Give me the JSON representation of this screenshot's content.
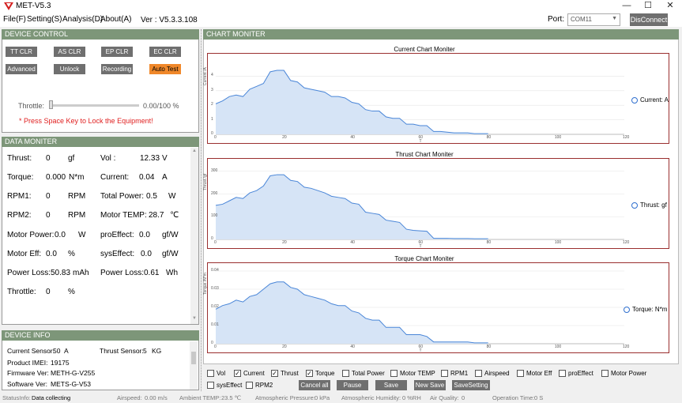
{
  "app": {
    "title": "MET-V5.3",
    "version": "Ver : V5.3.3.108"
  },
  "menu": [
    "File(F)",
    "Setting(S)",
    "Analysis(D)",
    "About(A)"
  ],
  "port": {
    "label": "Port:",
    "value": "COM11",
    "button": "DisConnect"
  },
  "device_control": {
    "header": "DEVICE CONTROL",
    "row1": [
      "TT CLR",
      "AS CLR",
      "EP CLR",
      "EC CLR"
    ],
    "row2": [
      "Advanced",
      "Unlock",
      "Recording",
      "Auto Test"
    ],
    "throttle_label": "Throttle:",
    "throttle_value": "0.00/100 %",
    "throttle_level": 0,
    "warning": "* Press Space Key to Lock the Equipment!"
  },
  "data_moniter": {
    "header": "DATA MONITER",
    "left": [
      {
        "label": "Thrust:",
        "value": "0",
        "unit": "gf"
      },
      {
        "label": "Torque:",
        "value": "0.000",
        "unit": "N*m"
      },
      {
        "label": "RPM1:",
        "value": "0",
        "unit": "RPM"
      },
      {
        "label": "RPM2:",
        "value": "0",
        "unit": "RPM"
      },
      {
        "label": "Motor Power:",
        "value": "0.0",
        "unit": "W"
      },
      {
        "label": "Motor Eff:",
        "value": "0.0",
        "unit": "%"
      },
      {
        "label": "Power Loss:",
        "value": "50.83",
        "unit": "mAh"
      },
      {
        "label": "Throttle:",
        "value": "0",
        "unit": "%"
      }
    ],
    "right": [
      {
        "label": "Vol :",
        "value": "12.33",
        "unit": "V"
      },
      {
        "label": "Current:",
        "value": "0.04",
        "unit": "A"
      },
      {
        "label": "Total Power:",
        "value": "0.5",
        "unit": "W"
      },
      {
        "label": "Motor TEMP:",
        "value": "28.7",
        "unit": "℃"
      },
      {
        "label": "proEffect:",
        "value": "0.0",
        "unit": "gf/W"
      },
      {
        "label": "sysEffect:",
        "value": "0.0",
        "unit": "gf/W"
      },
      {
        "label": "Power Loss:",
        "value": "0.61",
        "unit": "Wh"
      }
    ]
  },
  "device_info": {
    "header": "DEVICE INFO",
    "current_sensor_label": "Current Sensor:",
    "current_sensor_value": "50",
    "current_sensor_unit": "A",
    "thrust_sensor_label": "Thrust Sensor:",
    "thrust_sensor_value": "5",
    "thrust_sensor_unit": "KG",
    "imei_label": "Product IMEI:",
    "imei_value": "19175",
    "firmware_label": "Firmware Ver:",
    "firmware_value": "METH-G-V255",
    "software_label": "Software Ver:",
    "software_value": "METS-G-V53"
  },
  "chart_moniter_header": "CHART MONITER",
  "chart_data": [
    {
      "type": "area",
      "title": "Current Chart Moniter",
      "xlabel": "T",
      "ylabel": "Current /A",
      "xlim": [
        0,
        120
      ],
      "ylim": [
        0,
        5
      ],
      "xticks": [
        "0",
        "20",
        "40",
        "60",
        "80",
        "100",
        "120"
      ],
      "yticks": [
        "0",
        "1",
        "2",
        "3",
        "4"
      ],
      "series": [
        {
          "name": "Current: A",
          "color": "#4a86d8",
          "x": [
            0,
            2,
            4,
            6,
            8,
            10,
            12,
            14,
            16,
            18,
            20,
            22,
            24,
            26,
            28,
            30,
            32,
            34,
            36,
            38,
            40,
            42,
            44,
            46,
            48,
            50,
            52,
            54,
            56,
            58,
            60,
            62,
            64,
            66,
            68,
            70,
            72,
            74,
            76,
            78,
            80
          ],
          "y": [
            2.1,
            2.3,
            2.6,
            2.7,
            2.6,
            3.1,
            3.3,
            3.5,
            4.3,
            4.4,
            4.4,
            3.7,
            3.6,
            3.2,
            3.1,
            3.0,
            2.9,
            2.6,
            2.6,
            2.5,
            2.2,
            2.1,
            1.7,
            1.6,
            1.6,
            1.2,
            1.1,
            1.1,
            0.7,
            0.7,
            0.6,
            0.6,
            0.2,
            0.2,
            0.15,
            0.1,
            0.1,
            0.1,
            0.05,
            0.05,
            0.05
          ]
        }
      ]
    },
    {
      "type": "area",
      "title": "Thrust Chart Moniter",
      "xlabel": "T",
      "ylabel": "Thrust /gf",
      "xlim": [
        0,
        120
      ],
      "ylim": [
        0,
        320
      ],
      "xticks": [
        "0",
        "20",
        "40",
        "60",
        "80",
        "100",
        "120"
      ],
      "yticks": [
        "0",
        "100",
        "200",
        "300"
      ],
      "series": [
        {
          "name": "Thrust: gf",
          "color": "#4a86d8",
          "x": [
            0,
            2,
            4,
            6,
            8,
            10,
            12,
            14,
            16,
            18,
            20,
            22,
            24,
            26,
            28,
            30,
            32,
            34,
            36,
            38,
            40,
            42,
            44,
            46,
            48,
            50,
            52,
            54,
            56,
            58,
            60,
            62,
            64,
            66,
            68,
            70,
            72,
            74,
            76,
            78,
            80
          ],
          "y": [
            150,
            155,
            170,
            185,
            180,
            205,
            215,
            235,
            280,
            285,
            285,
            260,
            255,
            230,
            225,
            215,
            205,
            190,
            185,
            180,
            160,
            155,
            120,
            115,
            110,
            85,
            80,
            75,
            45,
            40,
            38,
            36,
            5,
            5,
            5,
            4,
            4,
            4,
            3,
            3,
            3
          ]
        }
      ]
    },
    {
      "type": "area",
      "title": "Torque Chart Moniter",
      "xlabel": "T",
      "ylabel": "Torque /N*m",
      "xlim": [
        0,
        120
      ],
      "ylim": [
        0,
        0.04
      ],
      "xticks": [
        "0",
        "20",
        "40",
        "60",
        "80",
        "100",
        "120"
      ],
      "yticks": [
        "0",
        "0.01",
        "0.02",
        "0.03",
        "0.04"
      ],
      "series": [
        {
          "name": "Torque: N*m",
          "color": "#4a86d8",
          "x": [
            0,
            2,
            4,
            6,
            8,
            10,
            12,
            14,
            16,
            18,
            20,
            22,
            24,
            26,
            28,
            30,
            32,
            34,
            36,
            38,
            40,
            42,
            44,
            46,
            48,
            50,
            52,
            54,
            56,
            58,
            60,
            62,
            64,
            66,
            68,
            70,
            72,
            74,
            76,
            78,
            80
          ],
          "y": [
            0.019,
            0.021,
            0.022,
            0.024,
            0.023,
            0.026,
            0.027,
            0.03,
            0.033,
            0.034,
            0.034,
            0.031,
            0.03,
            0.027,
            0.026,
            0.025,
            0.024,
            0.022,
            0.021,
            0.021,
            0.018,
            0.017,
            0.014,
            0.013,
            0.013,
            0.009,
            0.009,
            0.009,
            0.005,
            0.005,
            0.005,
            0.004,
            0.001,
            0.001,
            0.001,
            0.001,
            0.001,
            0.001,
            0.0005,
            0.0005,
            0.0005
          ]
        }
      ]
    }
  ],
  "checkboxes_row1": [
    {
      "label": "Vol",
      "checked": false
    },
    {
      "label": "Current",
      "checked": true
    },
    {
      "label": "Thrust",
      "checked": true
    },
    {
      "label": "Torque",
      "checked": true
    },
    {
      "label": "Total Power",
      "checked": false
    },
    {
      "label": "Motor TEMP",
      "checked": false
    },
    {
      "label": "RPM1",
      "checked": false
    },
    {
      "label": "Airspeed",
      "checked": false
    },
    {
      "label": "Motor Eff",
      "checked": false
    },
    {
      "label": "proEffect",
      "checked": false
    },
    {
      "label": "Motor Power",
      "checked": false
    }
  ],
  "checkboxes_row2": [
    {
      "label": "sysEffect",
      "checked": false
    },
    {
      "label": "RPM2",
      "checked": false
    }
  ],
  "bottom_buttons": [
    "Cancel all",
    "Pause",
    "Save",
    "New Save",
    "SaveSetting"
  ],
  "status": {
    "status_label": "StatusInfo:",
    "status_value": "Data collecting",
    "airspeed_label": "Airspeed:",
    "airspeed_value": "0.00 m/s",
    "ambient_label": "Ambient TEMP:",
    "ambient_value": "23.5 ℃",
    "pressure_label": "Atmospheric Pressure:",
    "pressure_value": "0 kPa",
    "humidity_label": "Atmospheric Humidity:",
    "humidity_value": "0 %RH",
    "air_label": "Air Quality:",
    "air_value": "0",
    "optime_label": "Operation Time:",
    "optime_value": "0 S"
  }
}
